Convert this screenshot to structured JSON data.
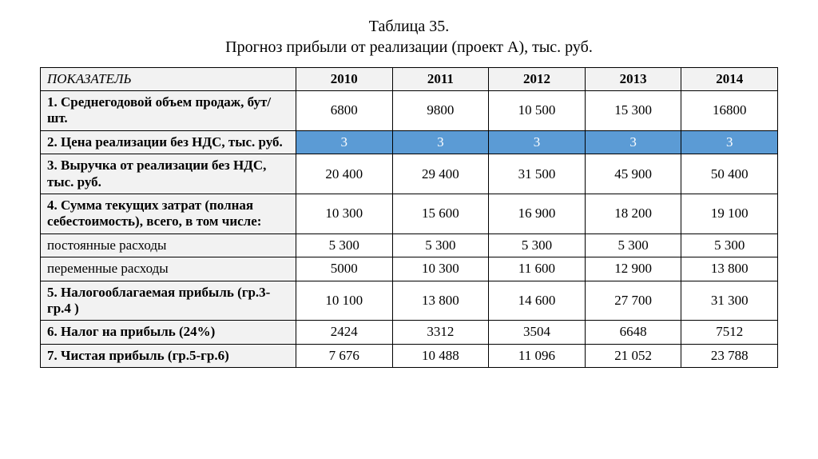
{
  "title_line_1": "Таблица 35.",
  "title_line_2": "Прогноз прибыли от реализации (проект А), тыс. руб.",
  "header": {
    "indicator": "ПОКАЗАТЕЛЬ",
    "years": [
      "2010",
      "2011",
      "2012",
      "2013",
      "2014"
    ]
  },
  "rows": [
    {
      "label": "1. Среднегодовой объем продаж, бут/шт.",
      "values": [
        "6800",
        "9800",
        "10 500",
        "15 300",
        "16800"
      ],
      "bold": true
    },
    {
      "label": "2. Цена реализации без НДС, тыс. руб.",
      "values": [
        "3",
        "3",
        "3",
        "3",
        "3"
      ],
      "bold": true,
      "highlight": true
    },
    {
      "label": "3. Выручка от реализации без НДС, тыс. руб.",
      "values": [
        "20 400",
        "29 400",
        "31 500",
        "45 900",
        "50 400"
      ],
      "bold": true
    },
    {
      "label": "4. Сумма текущих затрат (полная себестоимость), всего, в том числе:",
      "values": [
        "10 300",
        "15 600",
        "16 900",
        "18 200",
        "19 100"
      ],
      "bold": true
    },
    {
      "label": "постоянные расходы",
      "values": [
        "5 300",
        "5 300",
        "5 300",
        "5 300",
        "5 300"
      ],
      "bold": false
    },
    {
      "label": "переменные расходы",
      "values": [
        "5000",
        "10 300",
        "11 600",
        "12 900",
        "13 800"
      ],
      "bold": false
    },
    {
      "label": "5. Налогооблагаемая прибыль (гр.3-  гр.4 )",
      "values": [
        "10 100",
        "13 800",
        "14 600",
        "27 700",
        "31 300"
      ],
      "bold": true
    },
    {
      "label": "6. Налог на прибыль (24%)",
      "values": [
        "2424",
        "3312",
        "3504",
        "6648",
        "7512"
      ],
      "bold": true
    },
    {
      "label": "7. Чистая прибыль (гр.5-гр.6)",
      "values": [
        "7 676",
        "10 488",
        "11 096",
        "21 052",
        "23 788"
      ],
      "bold": true
    }
  ],
  "styling": {
    "header_bg": "#f2f2f2",
    "label_bg": "#f2f2f2",
    "value_bg": "#ffffff",
    "highlight_bg": "#5b9bd5",
    "highlight_text": "#ffffff",
    "border_color": "#000000",
    "font_family": "Times New Roman",
    "title_fontsize_pt": 15,
    "cell_fontsize_pt": 13
  }
}
